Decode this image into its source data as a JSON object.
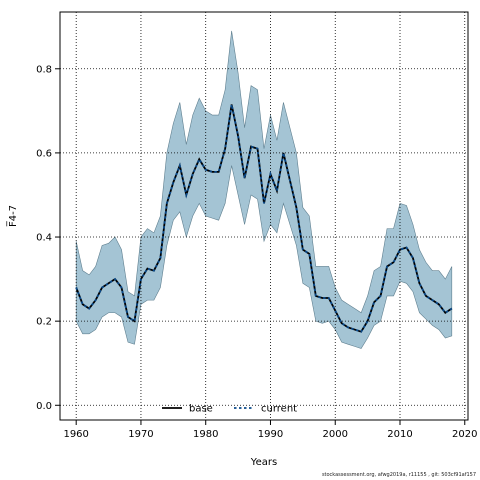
{
  "chart_data": {
    "type": "line",
    "xlabel": "Years",
    "ylabel": "F̅4-7",
    "xlim": [
      1957.5,
      2020.5
    ],
    "ylim": [
      -0.035,
      0.935
    ],
    "xticks": [
      1960,
      1970,
      1980,
      1990,
      2000,
      2010,
      2020
    ],
    "yticks": [
      0.0,
      0.2,
      0.4,
      0.6,
      0.8
    ],
    "ytick_labels": [
      "0.0",
      "0.2",
      "0.4",
      "0.6",
      "0.8"
    ],
    "grid": true,
    "legend": {
      "position": "bottom-center",
      "entries": [
        "base",
        "current"
      ]
    },
    "x": [
      1960,
      1961,
      1962,
      1963,
      1964,
      1965,
      1966,
      1967,
      1968,
      1969,
      1970,
      1971,
      1972,
      1973,
      1974,
      1975,
      1976,
      1977,
      1978,
      1979,
      1980,
      1981,
      1982,
      1983,
      1984,
      1985,
      1986,
      1987,
      1988,
      1989,
      1990,
      1991,
      1992,
      1993,
      1994,
      1995,
      1996,
      1997,
      1998,
      1999,
      2000,
      2001,
      2002,
      2003,
      2004,
      2005,
      2006,
      2007,
      2008,
      2009,
      2010,
      2011,
      2012,
      2013,
      2014,
      2015,
      2016,
      2017,
      2018
    ],
    "band": {
      "upper": [
        0.39,
        0.32,
        0.31,
        0.33,
        0.38,
        0.385,
        0.4,
        0.37,
        0.27,
        0.26,
        0.4,
        0.42,
        0.41,
        0.45,
        0.6,
        0.67,
        0.72,
        0.62,
        0.69,
        0.73,
        0.7,
        0.69,
        0.69,
        0.75,
        0.89,
        0.79,
        0.66,
        0.76,
        0.75,
        0.61,
        0.69,
        0.63,
        0.72,
        0.66,
        0.6,
        0.47,
        0.45,
        0.33,
        0.33,
        0.33,
        0.28,
        0.25,
        0.24,
        0.23,
        0.22,
        0.26,
        0.32,
        0.33,
        0.42,
        0.42,
        0.48,
        0.475,
        0.43,
        0.37,
        0.34,
        0.32,
        0.32,
        0.3,
        0.33
      ],
      "lower": [
        0.2,
        0.17,
        0.17,
        0.18,
        0.21,
        0.22,
        0.22,
        0.21,
        0.15,
        0.145,
        0.24,
        0.25,
        0.25,
        0.28,
        0.38,
        0.44,
        0.46,
        0.4,
        0.45,
        0.48,
        0.45,
        0.445,
        0.44,
        0.48,
        0.57,
        0.5,
        0.43,
        0.5,
        0.49,
        0.39,
        0.43,
        0.41,
        0.48,
        0.43,
        0.38,
        0.29,
        0.28,
        0.2,
        0.195,
        0.2,
        0.18,
        0.15,
        0.145,
        0.14,
        0.135,
        0.16,
        0.19,
        0.2,
        0.26,
        0.26,
        0.295,
        0.29,
        0.27,
        0.22,
        0.205,
        0.19,
        0.18,
        0.16,
        0.165
      ]
    },
    "series": [
      {
        "name": "base",
        "values": [
          0.28,
          0.24,
          0.23,
          0.25,
          0.28,
          0.29,
          0.3,
          0.28,
          0.21,
          0.2,
          0.3,
          0.325,
          0.32,
          0.35,
          0.48,
          0.53,
          0.57,
          0.5,
          0.55,
          0.585,
          0.56,
          0.555,
          0.555,
          0.61,
          0.715,
          0.64,
          0.54,
          0.615,
          0.61,
          0.48,
          0.55,
          0.51,
          0.6,
          0.535,
          0.47,
          0.37,
          0.36,
          0.26,
          0.255,
          0.255,
          0.225,
          0.195,
          0.185,
          0.18,
          0.175,
          0.2,
          0.245,
          0.26,
          0.33,
          0.34,
          0.37,
          0.375,
          0.35,
          0.29,
          0.26,
          0.25,
          0.24,
          0.22,
          0.23
        ]
      },
      {
        "name": "current",
        "values": [
          0.28,
          0.24,
          0.23,
          0.25,
          0.28,
          0.29,
          0.3,
          0.28,
          0.21,
          0.2,
          0.3,
          0.325,
          0.32,
          0.35,
          0.48,
          0.53,
          0.57,
          0.5,
          0.55,
          0.585,
          0.56,
          0.555,
          0.555,
          0.61,
          0.715,
          0.64,
          0.54,
          0.615,
          0.61,
          0.48,
          0.55,
          0.51,
          0.6,
          0.535,
          0.47,
          0.37,
          0.36,
          0.26,
          0.255,
          0.255,
          0.225,
          0.195,
          0.185,
          0.18,
          0.175,
          0.2,
          0.245,
          0.26,
          0.33,
          0.34,
          0.37,
          0.375,
          0.35,
          0.29,
          0.26,
          0.25,
          0.24,
          0.22,
          0.23
        ]
      }
    ],
    "colors": {
      "band_fill": "#a4c4d4",
      "band_edge": "#5f7f8f",
      "base_line": "#000000",
      "current_line": "#0a4a8a"
    }
  },
  "footer_text": "stockassessment.org, afwg2019a, r11155 , git: 503cf91af157"
}
